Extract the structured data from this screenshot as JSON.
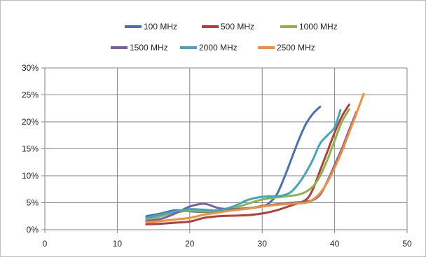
{
  "chart_data": {
    "type": "line",
    "title": "",
    "xlabel": "",
    "ylabel": "",
    "xlim": [
      0,
      50
    ],
    "ylim": [
      0,
      30
    ],
    "x_ticks": [
      0,
      10,
      20,
      30,
      40,
      50
    ],
    "y_ticks": [
      0,
      5,
      10,
      15,
      20,
      25,
      30
    ],
    "x_tick_labels": [
      "0",
      "10",
      "20",
      "30",
      "40",
      "50"
    ],
    "y_tick_labels": [
      "0%",
      "5%",
      "10%",
      "15%",
      "20%",
      "25%",
      "30%"
    ],
    "grid": "vertical and horizontal major gridlines",
    "legend_position": "top",
    "series": [
      {
        "name": "100 MHz",
        "color": "#4a72b2",
        "x": [
          14,
          16,
          18,
          20,
          22,
          24,
          26,
          28,
          30,
          31,
          32,
          33,
          34,
          35,
          36,
          37,
          38
        ],
        "y": [
          2.5,
          3.0,
          3.6,
          3.4,
          3.3,
          3.5,
          3.8,
          4.0,
          4.3,
          5.0,
          6.5,
          9.5,
          13.0,
          16.5,
          19.5,
          21.5,
          22.8
        ]
      },
      {
        "name": "500 MHz",
        "color": "#b2403c",
        "x": [
          14,
          16,
          18,
          20,
          22,
          24,
          26,
          28,
          30,
          32,
          34,
          36,
          37,
          38,
          39,
          40,
          41,
          42
        ],
        "y": [
          1.0,
          1.1,
          1.3,
          1.5,
          2.2,
          2.5,
          2.6,
          2.7,
          3.0,
          3.6,
          4.5,
          5.5,
          7.5,
          11.0,
          14.5,
          18.0,
          21.0,
          23.2
        ]
      },
      {
        "name": "1000 MHz",
        "color": "#8db44a",
        "x": [
          14,
          16,
          18,
          20,
          22,
          24,
          26,
          28,
          30,
          32,
          34,
          35,
          36,
          37,
          38,
          39,
          40,
          41,
          42
        ],
        "y": [
          1.8,
          2.5,
          3.2,
          3.5,
          3.4,
          3.6,
          4.0,
          4.8,
          5.6,
          6.0,
          6.3,
          6.5,
          7.0,
          8.0,
          10.0,
          13.0,
          16.5,
          20.0,
          22.3
        ]
      },
      {
        "name": "1500 MHz",
        "color": "#7b5ea6",
        "x": [
          14,
          16,
          18,
          20,
          22,
          24,
          26,
          28,
          30,
          32,
          34,
          36,
          37,
          38,
          39,
          40,
          41,
          42,
          43
        ],
        "y": [
          1.6,
          2.0,
          3.0,
          4.3,
          4.8,
          4.0,
          3.8,
          3.9,
          4.4,
          4.7,
          5.0,
          5.2,
          5.5,
          6.5,
          9.0,
          12.0,
          15.0,
          18.5,
          21.8
        ]
      },
      {
        "name": "2000 MHz",
        "color": "#43a6bf",
        "x": [
          14,
          16,
          18,
          20,
          22,
          24,
          26,
          28,
          30,
          32,
          33,
          34,
          35,
          36,
          37,
          38,
          39,
          40,
          40.8
        ],
        "y": [
          2.2,
          2.8,
          3.4,
          3.8,
          3.7,
          3.6,
          4.3,
          5.5,
          6.1,
          6.2,
          6.4,
          7.0,
          8.5,
          10.5,
          13.0,
          16.0,
          17.5,
          19.0,
          22.2
        ]
      },
      {
        "name": "2500 MHz",
        "color": "#f0913a",
        "x": [
          14,
          16,
          18,
          20,
          22,
          24,
          26,
          28,
          30,
          32,
          34,
          36,
          37,
          38,
          39,
          40,
          41,
          42,
          43,
          44
        ],
        "y": [
          1.4,
          1.6,
          1.9,
          2.2,
          2.8,
          3.2,
          3.6,
          3.9,
          4.3,
          4.6,
          4.8,
          5.0,
          5.6,
          6.8,
          8.8,
          11.5,
          14.5,
          18.0,
          21.5,
          25.2
        ]
      }
    ]
  }
}
